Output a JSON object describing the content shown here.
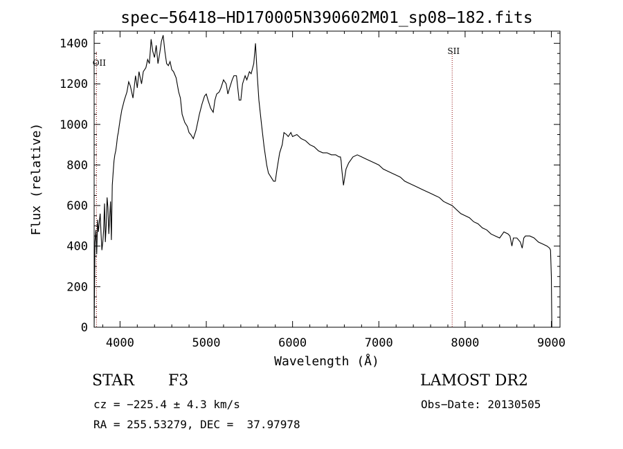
{
  "chart_data": {
    "type": "line",
    "title": "spec−56418−HD170005N390602M01_sp08−182.fits",
    "xlabel": "Wavelength (Å)",
    "ylabel": "Flux (relative)",
    "xlim": [
      3700,
      9100
    ],
    "ylim": [
      0,
      1460
    ],
    "xticks": [
      4000,
      5000,
      6000,
      7000,
      8000,
      9000
    ],
    "yticks": [
      0,
      200,
      400,
      600,
      800,
      1000,
      1200,
      1400
    ],
    "grid": false,
    "series": [
      {
        "x": [
          3700,
          3710,
          3720,
          3730,
          3740,
          3750,
          3760,
          3770,
          3780,
          3790,
          3800,
          3810,
          3820,
          3830,
          3840,
          3850,
          3860,
          3870,
          3880,
          3890,
          3900,
          3910,
          3920,
          3930,
          3940,
          3950,
          3960,
          3970,
          3980,
          3990,
          4000,
          4020,
          4050,
          4080,
          4100,
          4120,
          4150,
          4180,
          4200,
          4220,
          4250,
          4270,
          4300,
          4320,
          4340,
          4360,
          4380,
          4400,
          4420,
          4440,
          4460,
          4480,
          4500,
          4520,
          4540,
          4560,
          4580,
          4600,
          4620,
          4650,
          4680,
          4700,
          4720,
          4750,
          4780,
          4800,
          4820,
          4850,
          4880,
          4900,
          4920,
          4950,
          4980,
          5000,
          5020,
          5050,
          5080,
          5100,
          5120,
          5150,
          5170,
          5200,
          5230,
          5250,
          5270,
          5300,
          5320,
          5350,
          5380,
          5400,
          5420,
          5450,
          5470,
          5500,
          5520,
          5550,
          5570,
          5590,
          5610,
          5640,
          5670,
          5700,
          5720,
          5750,
          5780,
          5800,
          5820,
          5850,
          5880,
          5900,
          5930,
          5950,
          5980,
          6000,
          6050,
          6100,
          6150,
          6200,
          6250,
          6300,
          6350,
          6400,
          6450,
          6500,
          6540,
          6555,
          6563,
          6570,
          6590,
          6620,
          6650,
          6700,
          6750,
          6800,
          6850,
          6900,
          6950,
          7000,
          7050,
          7100,
          7150,
          7200,
          7250,
          7300,
          7350,
          7400,
          7450,
          7500,
          7550,
          7600,
          7650,
          7700,
          7750,
          7800,
          7850,
          7900,
          7950,
          8000,
          8050,
          8100,
          8150,
          8200,
          8250,
          8300,
          8350,
          8400,
          8450,
          8498,
          8520,
          8542,
          8560,
          8600,
          8640,
          8662,
          8680,
          8700,
          8750,
          8800,
          8850,
          8900,
          8950,
          8980,
          8990,
          9000,
          9005
        ],
        "y": [
          0,
          420,
          480,
          360,
          530,
          470,
          520,
          560,
          460,
          380,
          420,
          480,
          610,
          420,
          500,
          640,
          590,
          460,
          540,
          620,
          430,
          700,
          760,
          820,
          850,
          870,
          900,
          940,
          960,
          990,
          1020,
          1070,
          1120,
          1160,
          1210,
          1190,
          1130,
          1240,
          1180,
          1260,
          1200,
          1260,
          1280,
          1320,
          1300,
          1420,
          1360,
          1330,
          1390,
          1300,
          1350,
          1410,
          1440,
          1360,
          1300,
          1290,
          1310,
          1270,
          1260,
          1230,
          1160,
          1130,
          1050,
          1010,
          990,
          960,
          950,
          930,
          970,
          1010,
          1050,
          1100,
          1140,
          1150,
          1120,
          1080,
          1060,
          1120,
          1150,
          1160,
          1180,
          1220,
          1200,
          1150,
          1180,
          1220,
          1240,
          1240,
          1120,
          1120,
          1200,
          1240,
          1220,
          1260,
          1250,
          1300,
          1400,
          1250,
          1120,
          1000,
          890,
          800,
          760,
          740,
          720,
          720,
          780,
          860,
          900,
          960,
          950,
          940,
          960,
          940,
          950,
          930,
          920,
          900,
          890,
          870,
          860,
          860,
          850,
          850,
          840,
          840,
          820,
          780,
          700,
          780,
          810,
          840,
          850,
          840,
          830,
          820,
          810,
          800,
          780,
          770,
          760,
          750,
          740,
          720,
          710,
          700,
          690,
          680,
          670,
          660,
          650,
          640,
          620,
          610,
          600,
          580,
          560,
          550,
          540,
          520,
          510,
          490,
          480,
          460,
          450,
          440,
          470,
          460,
          450,
          400,
          440,
          440,
          420,
          390,
          440,
          450,
          450,
          440,
          420,
          410,
          400,
          390,
          380,
          250,
          0
        ]
      }
    ],
    "annotations": [
      {
        "label": "OII",
        "x": 3727
      },
      {
        "label": "SII",
        "x": 7850
      }
    ]
  },
  "info": {
    "object_class": "STAR",
    "subclass": "F3",
    "survey": "LAMOST DR2",
    "cz": "cz = −225.4 ± 4.3 km/s",
    "obs_date": "Obs−Date: 20130505",
    "coords": "RA = 255.53279, DEC =  37.97978"
  }
}
